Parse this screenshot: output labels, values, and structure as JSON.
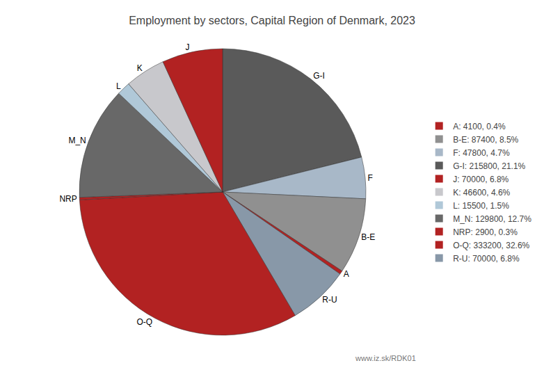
{
  "chart_data": {
    "type": "pie",
    "title": "Employment by sectors, Capital Region of Denmark, 2023",
    "categories": [
      "G-I",
      "F",
      "B-E",
      "A",
      "R-U",
      "O-Q",
      "NRP",
      "M_N",
      "L",
      "K",
      "J"
    ],
    "values": [
      215800,
      47800,
      87400,
      4100,
      70000,
      333200,
      2900,
      129800,
      15500,
      46600,
      70000
    ],
    "colors": [
      "#5a5a5a",
      "#a8b8c8",
      "#909090",
      "#b22222",
      "#8898a8",
      "#b22222",
      "#b22222",
      "#686868",
      "#b0c8d8",
      "#c8c8cc",
      "#b22222"
    ],
    "legend": "right",
    "legend_labels": [
      "A: 4100, 0.4%",
      "B-E: 87400, 8.5%",
      "F: 47800, 4.7%",
      "G-I: 215800, 21.1%",
      "J: 70000, 6.8%",
      "K: 46600, 4.6%",
      "L: 15500, 1.5%",
      "M_N: 129800, 12.7%",
      "NRP: 2900, 0.3%",
      "O-Q: 333200, 32.6%",
      "R-U: 70000, 6.8%"
    ],
    "legend_colors": [
      "#b22222",
      "#909090",
      "#a8b8c8",
      "#5a5a5a",
      "#b22222",
      "#c8c8cc",
      "#b0c8d8",
      "#686868",
      "#b22222",
      "#b22222",
      "#8898a8"
    ],
    "annotations": [
      "www.iz.sk/RDK01"
    ]
  }
}
